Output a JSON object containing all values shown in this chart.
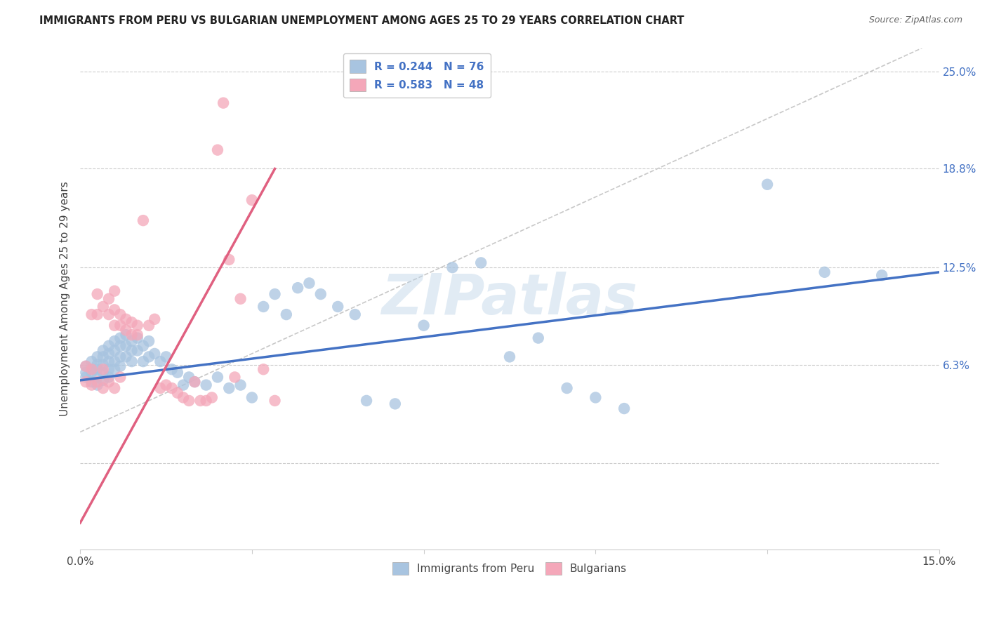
{
  "title": "IMMIGRANTS FROM PERU VS BULGARIAN UNEMPLOYMENT AMONG AGES 25 TO 29 YEARS CORRELATION CHART",
  "source": "Source: ZipAtlas.com",
  "ylabel": "Unemployment Among Ages 25 to 29 years",
  "xlim": [
    0.0,
    0.15
  ],
  "ylim": [
    -0.055,
    0.265
  ],
  "xticks": [
    0.0,
    0.03,
    0.06,
    0.09,
    0.12,
    0.15
  ],
  "xticklabels": [
    "0.0%",
    "",
    "",
    "",
    "",
    "15.0%"
  ],
  "yticks_right": [
    0.0,
    0.063,
    0.125,
    0.188,
    0.25
  ],
  "ytick_labels_right": [
    "",
    "6.3%",
    "12.5%",
    "18.8%",
    "25.0%"
  ],
  "peru_R": 0.244,
  "peru_N": 76,
  "bulg_R": 0.583,
  "bulg_N": 48,
  "peru_color": "#a8c4e0",
  "bulg_color": "#f4a7b9",
  "peru_line_color": "#4472c4",
  "bulg_line_color": "#e06080",
  "diagonal_color": "#c8c8c8",
  "background_color": "#ffffff",
  "grid_color": "#cccccc",
  "watermark": "ZIPatlas",
  "legend_R_color": "#4472c4",
  "peru_scatter_x": [
    0.001,
    0.001,
    0.001,
    0.002,
    0.002,
    0.002,
    0.002,
    0.003,
    0.003,
    0.003,
    0.003,
    0.003,
    0.004,
    0.004,
    0.004,
    0.004,
    0.004,
    0.005,
    0.005,
    0.005,
    0.005,
    0.005,
    0.006,
    0.006,
    0.006,
    0.006,
    0.007,
    0.007,
    0.007,
    0.007,
    0.008,
    0.008,
    0.008,
    0.009,
    0.009,
    0.009,
    0.01,
    0.01,
    0.011,
    0.011,
    0.012,
    0.012,
    0.013,
    0.014,
    0.015,
    0.016,
    0.017,
    0.018,
    0.019,
    0.02,
    0.022,
    0.024,
    0.026,
    0.028,
    0.03,
    0.032,
    0.034,
    0.036,
    0.038,
    0.04,
    0.042,
    0.045,
    0.048,
    0.05,
    0.055,
    0.06,
    0.065,
    0.07,
    0.075,
    0.08,
    0.085,
    0.09,
    0.095,
    0.12,
    0.13,
    0.14
  ],
  "peru_scatter_y": [
    0.062,
    0.058,
    0.055,
    0.065,
    0.06,
    0.058,
    0.052,
    0.068,
    0.063,
    0.06,
    0.055,
    0.05,
    0.072,
    0.068,
    0.063,
    0.058,
    0.053,
    0.075,
    0.07,
    0.065,
    0.06,
    0.055,
    0.078,
    0.072,
    0.065,
    0.06,
    0.08,
    0.075,
    0.068,
    0.062,
    0.082,
    0.075,
    0.068,
    0.078,
    0.072,
    0.065,
    0.08,
    0.072,
    0.075,
    0.065,
    0.078,
    0.068,
    0.07,
    0.065,
    0.068,
    0.06,
    0.058,
    0.05,
    0.055,
    0.052,
    0.05,
    0.055,
    0.048,
    0.05,
    0.042,
    0.1,
    0.108,
    0.095,
    0.112,
    0.115,
    0.108,
    0.1,
    0.095,
    0.04,
    0.038,
    0.088,
    0.125,
    0.128,
    0.068,
    0.08,
    0.048,
    0.042,
    0.035,
    0.178,
    0.122,
    0.12
  ],
  "bulg_scatter_x": [
    0.001,
    0.001,
    0.002,
    0.002,
    0.002,
    0.003,
    0.003,
    0.003,
    0.004,
    0.004,
    0.004,
    0.005,
    0.005,
    0.005,
    0.006,
    0.006,
    0.006,
    0.006,
    0.007,
    0.007,
    0.007,
    0.008,
    0.008,
    0.009,
    0.009,
    0.01,
    0.01,
    0.011,
    0.012,
    0.013,
    0.014,
    0.015,
    0.016,
    0.017,
    0.018,
    0.019,
    0.02,
    0.021,
    0.022,
    0.023,
    0.024,
    0.025,
    0.026,
    0.027,
    0.028,
    0.03,
    0.032,
    0.034
  ],
  "bulg_scatter_y": [
    0.062,
    0.052,
    0.095,
    0.06,
    0.05,
    0.108,
    0.095,
    0.052,
    0.1,
    0.06,
    0.048,
    0.105,
    0.095,
    0.052,
    0.11,
    0.098,
    0.088,
    0.048,
    0.095,
    0.088,
    0.055,
    0.092,
    0.085,
    0.09,
    0.082,
    0.088,
    0.082,
    0.155,
    0.088,
    0.092,
    0.048,
    0.05,
    0.048,
    0.045,
    0.042,
    0.04,
    0.052,
    0.04,
    0.04,
    0.042,
    0.2,
    0.23,
    0.13,
    0.055,
    0.105,
    0.168,
    0.06,
    0.04
  ],
  "peru_line_x": [
    0.0,
    0.15
  ],
  "peru_line_y": [
    0.053,
    0.122
  ],
  "bulg_line_x": [
    0.0,
    0.034
  ],
  "bulg_line_y": [
    -0.038,
    0.188
  ]
}
